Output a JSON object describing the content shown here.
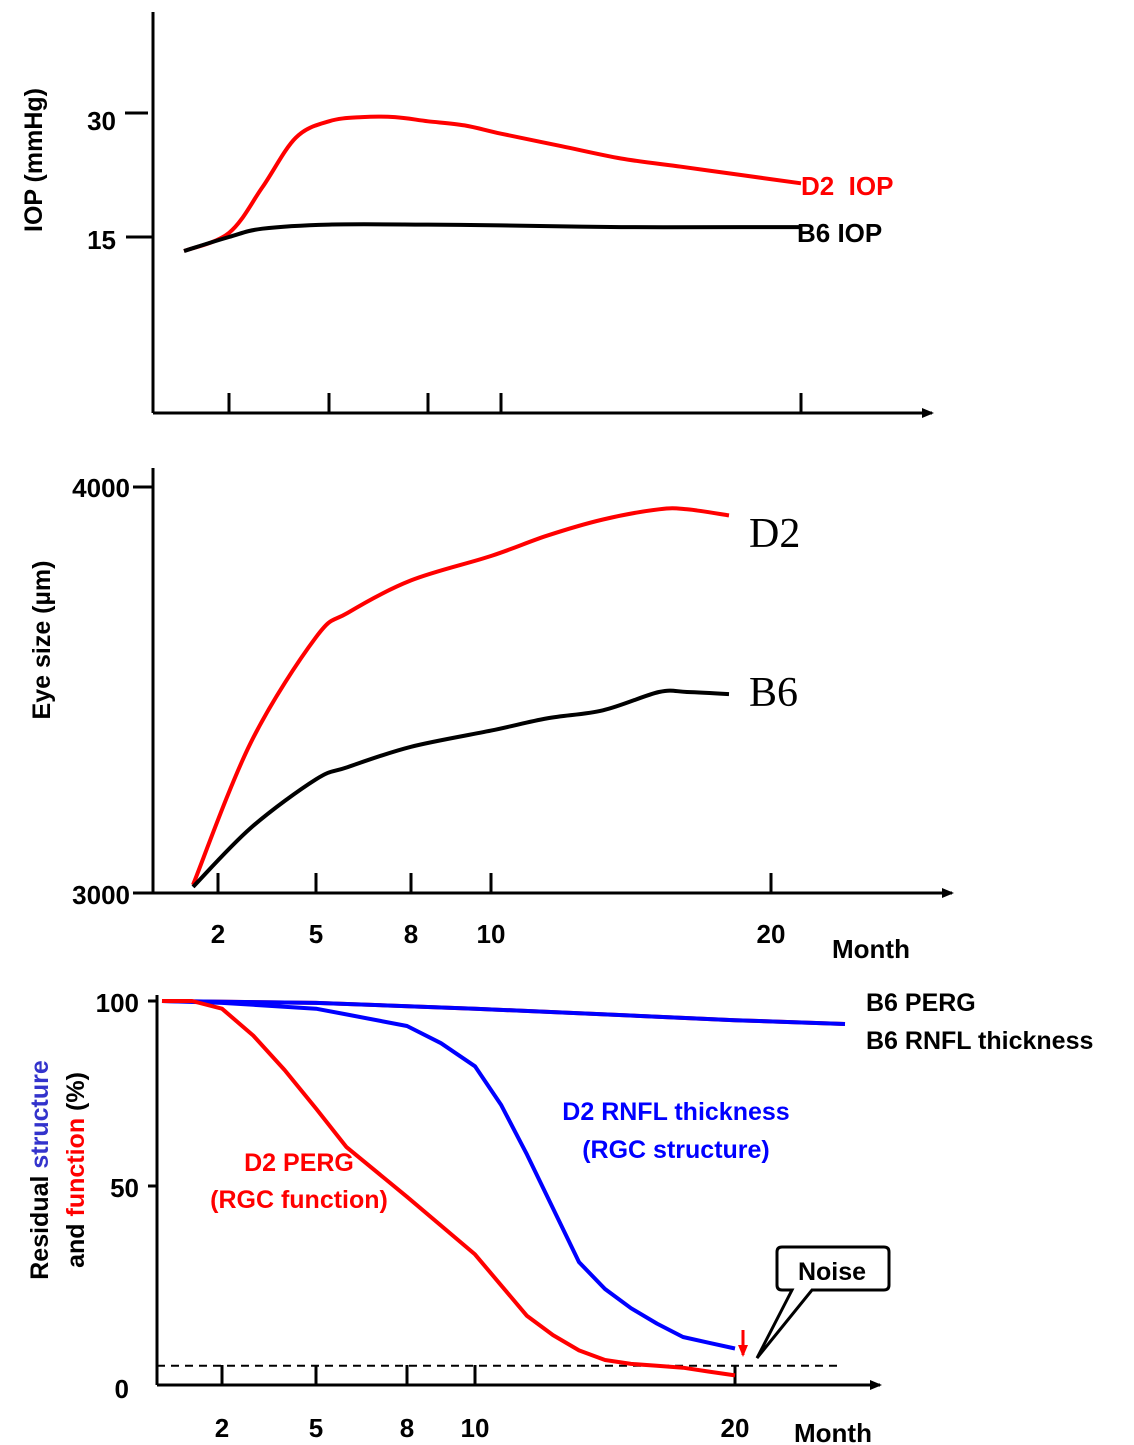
{
  "chart_data": [
    {
      "type": "line",
      "ylabel": "IOP (mmHg)",
      "yticks": [
        "30",
        "15"
      ],
      "x_ticks_unlabeled": [
        2,
        5,
        8,
        10,
        20
      ],
      "series": [
        {
          "name": "D2  IOP",
          "color": "#ff0000",
          "x": [
            1,
            2,
            3,
            4,
            5,
            6,
            7,
            8,
            9,
            10,
            12,
            14,
            16,
            18,
            20
          ],
          "y": [
            14,
            15.5,
            21,
            27,
            29,
            29.5,
            29.5,
            29,
            28.5,
            27.5,
            26,
            24.5,
            23.5,
            22.5,
            21.5
          ]
        },
        {
          "name": "B6 IOP",
          "color": "#000000",
          "x": [
            1,
            2,
            3,
            5,
            8,
            10,
            14,
            18,
            20
          ],
          "y": [
            14,
            15,
            16,
            16.5,
            16.5,
            16.4,
            16.2,
            16.2,
            16.2
          ]
        }
      ]
    },
    {
      "type": "line",
      "ylabel": "Eye size (µm)",
      "yticks": [
        "4000",
        "3000"
      ],
      "xticks": [
        "2",
        "5",
        "8",
        "10",
        "20"
      ],
      "xlabel": "Month",
      "series": [
        {
          "name": "D2",
          "color": "#ff0000",
          "x": [
            1.5,
            3,
            5,
            6,
            8,
            10,
            12,
            14,
            16,
            17,
            18.5
          ],
          "y": [
            3020,
            3370,
            3630,
            3690,
            3770,
            3830,
            3880,
            3920,
            3945,
            3945,
            3930
          ]
        },
        {
          "name": "B6",
          "color": "#000000",
          "x": [
            1.5,
            3,
            5,
            6,
            8,
            10,
            12,
            14,
            16,
            17,
            18.5
          ],
          "y": [
            3015,
            3160,
            3280,
            3310,
            3360,
            3400,
            3430,
            3450,
            3495,
            3495,
            3490
          ]
        }
      ]
    },
    {
      "type": "line",
      "ylabel_parts": [
        "Residual ",
        "structure",
        "and ",
        "function",
        " (%)"
      ],
      "yticks": [
        "100",
        "50",
        "0"
      ],
      "xticks": [
        "2",
        "5",
        "8",
        "10",
        "20"
      ],
      "xlabel": "Month",
      "series": [
        {
          "name": "B6 PERG",
          "color": "#ff0000",
          "x": [
            0,
            5,
            10,
            15,
            20,
            23
          ],
          "y": [
            101,
            99.5,
            98,
            96.5,
            95,
            94
          ]
        },
        {
          "name": "B6 RNFL thickness",
          "color": "#0000ff",
          "x": [
            0,
            5,
            10,
            15,
            20,
            23
          ],
          "y": [
            100.5,
            99.5,
            98,
            96.5,
            95,
            94
          ]
        },
        {
          "name": "D2 RNFL thickness",
          "color": "#0000ff",
          "text_lines": [
            "D2 RNFL thickness",
            "(RGC structure)"
          ],
          "x": [
            0,
            2,
            3,
            5,
            6,
            8,
            9,
            10,
            11,
            12,
            13,
            14,
            15,
            16,
            17,
            18,
            19,
            20
          ],
          "y": [
            100,
            99.5,
            99,
            98,
            96.5,
            93.5,
            89,
            83,
            73,
            60,
            46,
            32,
            25,
            20,
            16,
            12.5,
            11,
            9.5
          ]
        },
        {
          "name": "D2 PERG",
          "color": "#ff0000",
          "text_lines": [
            "D2 PERG",
            "(RGC function)"
          ],
          "x": [
            0,
            1,
            2,
            3,
            4,
            5,
            6,
            8,
            10,
            11,
            12,
            13,
            14,
            15,
            16,
            17,
            18,
            19,
            20
          ],
          "y": [
            100,
            100,
            98,
            91,
            82,
            72,
            62,
            49,
            34,
            26,
            18,
            13,
            9,
            6.5,
            5.5,
            5,
            4.5,
            3.5,
            2.5
          ]
        }
      ],
      "noise_floor": 5,
      "callout": "Noise"
    }
  ]
}
